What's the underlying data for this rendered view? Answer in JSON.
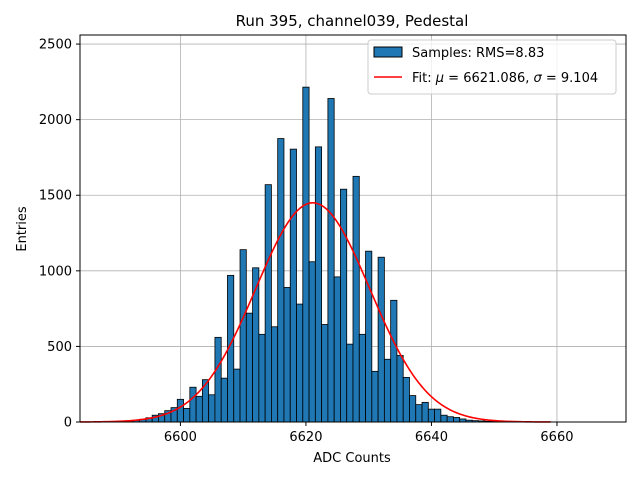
{
  "chart_data": {
    "type": "bar",
    "title": "Run 395, channel039, Pedestal",
    "xlabel": "ADC Counts",
    "ylabel": "Entries",
    "xlim": [
      6584,
      6671
    ],
    "ylim": [
      0,
      2560
    ],
    "x_ticks": [
      6600,
      6620,
      6640,
      6660
    ],
    "y_ticks": [
      0,
      500,
      1000,
      1500,
      2000,
      2500
    ],
    "grid": true,
    "legend_position": "top-right",
    "bin_width": 1,
    "colors": {
      "bars": "#1f77b4",
      "bar_edge": "#000000",
      "fit": "#ff0000",
      "grid": "#b0b0b0"
    },
    "series": [
      {
        "name": "Samples: RMS=8.83",
        "type": "histogram",
        "bins": [
          6589,
          6590,
          6591,
          6592,
          6593,
          6594,
          6595,
          6596,
          6597,
          6598,
          6599,
          6600,
          6601,
          6602,
          6603,
          6604,
          6605,
          6606,
          6607,
          6608,
          6609,
          6610,
          6611,
          6612,
          6613,
          6614,
          6615,
          6616,
          6617,
          6618,
          6619,
          6620,
          6621,
          6622,
          6623,
          6624,
          6625,
          6626,
          6627,
          6628,
          6629,
          6630,
          6631,
          6632,
          6633,
          6634,
          6635,
          6636,
          6637,
          6638,
          6639,
          6640,
          6641,
          6642,
          6643,
          6644,
          6645,
          6646,
          6647,
          6648,
          6649,
          6650,
          6651,
          6652
        ],
        "values": [
          2,
          3,
          5,
          8,
          12,
          18,
          28,
          45,
          55,
          75,
          95,
          150,
          90,
          230,
          170,
          280,
          180,
          560,
          290,
          970,
          350,
          1140,
          720,
          1020,
          580,
          1570,
          630,
          1875,
          890,
          1805,
          780,
          2215,
          1060,
          1820,
          645,
          2140,
          960,
          1540,
          515,
          1625,
          580,
          1130,
          335,
          1090,
          415,
          805,
          440,
          295,
          175,
          115,
          130,
          85,
          85,
          45,
          35,
          30,
          20,
          12,
          9,
          7,
          5,
          4,
          3,
          2
        ]
      },
      {
        "name": "Fit: μ = 6621.086, σ = 9.104",
        "legend_math": {
          "prefix": "Fit: ",
          "mu_symbol": "μ",
          "mu_text": " = 6621.086, ",
          "sigma_symbol": "σ",
          "sigma_text": " = 9.104"
        },
        "type": "line",
        "function": "gaussian",
        "mu": 6621.086,
        "sigma": 9.104,
        "amplitude": 1450,
        "x_range": [
          6584,
          6659
        ]
      }
    ]
  }
}
